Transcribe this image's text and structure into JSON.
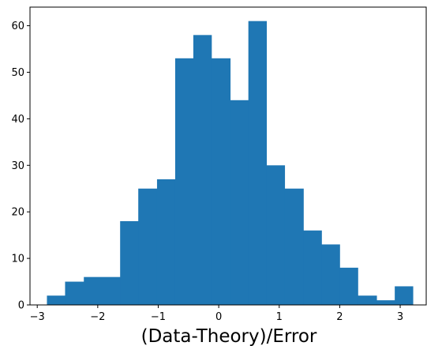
{
  "chart_data": {
    "type": "bar",
    "subtype": "histogram",
    "title": "",
    "xlabel": "(Data-Theory)/Error",
    "ylabel": "",
    "xlim": [
      -3.12,
      3.43
    ],
    "ylim": [
      0,
      64
    ],
    "bar_color": "#1f77b4",
    "grid": false,
    "bin_edges": [
      -2.84,
      -2.54,
      -2.23,
      -1.63,
      -1.33,
      -1.02,
      -0.72,
      -0.42,
      -0.12,
      0.19,
      0.49,
      0.79,
      1.09,
      1.4,
      1.7,
      2.0,
      2.3,
      2.61,
      2.91,
      3.21
    ],
    "values": [
      2,
      5,
      6,
      18,
      25,
      27,
      53,
      58,
      53,
      44,
      61,
      30,
      25,
      16,
      13,
      8,
      2,
      1,
      4
    ],
    "x_ticks": [
      {
        "value": -3,
        "label": "−3"
      },
      {
        "value": -2,
        "label": "−2"
      },
      {
        "value": -1,
        "label": "−1"
      },
      {
        "value": 0,
        "label": "0"
      },
      {
        "value": 1,
        "label": "1"
      },
      {
        "value": 2,
        "label": "2"
      },
      {
        "value": 3,
        "label": "3"
      }
    ],
    "y_ticks": [
      {
        "value": 0,
        "label": "0"
      },
      {
        "value": 10,
        "label": "10"
      },
      {
        "value": 20,
        "label": "20"
      },
      {
        "value": 30,
        "label": "30"
      },
      {
        "value": 40,
        "label": "40"
      },
      {
        "value": 50,
        "label": "50"
      },
      {
        "value": 60,
        "label": "60"
      }
    ]
  }
}
